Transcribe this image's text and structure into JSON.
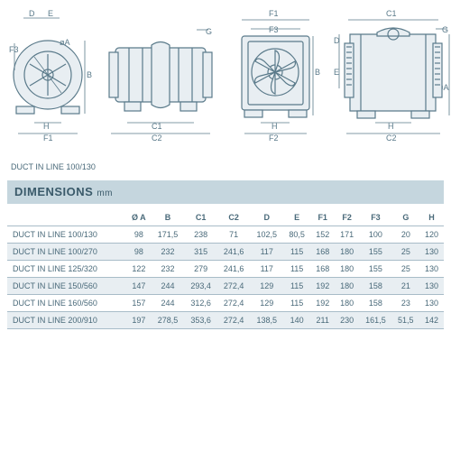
{
  "product_label": "DUCT IN LINE 100/130",
  "dimensions_title": "DIMENSIONS",
  "dimensions_unit": "mm",
  "diagram_labels": {
    "d1": {
      "D": "D",
      "E": "E",
      "F3": "F3",
      "B": "B",
      "oA": "øA",
      "H": "H",
      "F1": "F1"
    },
    "d2": {
      "G": "G",
      "C1": "C1",
      "C2": "C2"
    },
    "d3": {
      "F1": "F1",
      "F3": "F3",
      "B": "B",
      "H": "H",
      "F2": "F2"
    },
    "d4": {
      "C1": "C1",
      "G": "G",
      "D": "D",
      "E": "E",
      "B": "B",
      "oA": "øA",
      "H": "H",
      "C2": "C2"
    }
  },
  "table": {
    "columns": [
      "Ø A",
      "B",
      "C1",
      "C2",
      "D",
      "E",
      "F1",
      "F2",
      "F3",
      "G",
      "H"
    ],
    "rows": [
      {
        "model": "DUCT IN LINE 100/130",
        "vals": [
          "98",
          "171,5",
          "238",
          "71",
          "102,5",
          "80,5",
          "152",
          "171",
          "100",
          "20",
          "120"
        ]
      },
      {
        "model": "DUCT IN LINE 100/270",
        "vals": [
          "98",
          "232",
          "315",
          "241,6",
          "117",
          "115",
          "168",
          "180",
          "155",
          "25",
          "130"
        ]
      },
      {
        "model": "DUCT IN LINE 125/320",
        "vals": [
          "122",
          "232",
          "279",
          "241,6",
          "117",
          "115",
          "168",
          "180",
          "155",
          "25",
          "130"
        ]
      },
      {
        "model": "DUCT IN LINE 150/560",
        "vals": [
          "147",
          "244",
          "293,4",
          "272,4",
          "129",
          "115",
          "192",
          "180",
          "158",
          "21",
          "130"
        ]
      },
      {
        "model": "DUCT IN LINE 160/560",
        "vals": [
          "157",
          "244",
          "312,6",
          "272,4",
          "129",
          "115",
          "192",
          "180",
          "158",
          "23",
          "130"
        ]
      },
      {
        "model": "DUCT IN LINE 200/910",
        "vals": [
          "197",
          "278,5",
          "353,6",
          "272,4",
          "138,5",
          "140",
          "211",
          "230",
          "161,5",
          "51,5",
          "142"
        ]
      }
    ],
    "alt_row_bg": "#e8eef2",
    "border_color": "#a8bcc8",
    "text_color": "#4a6a7a",
    "header_bg": "#c5d6de"
  }
}
